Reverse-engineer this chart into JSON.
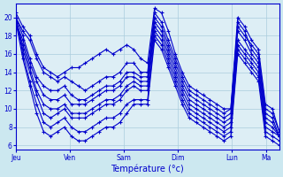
{
  "background_color": "#cce8f0",
  "plot_bg_color": "#ddeef5",
  "line_color": "#0000cc",
  "marker": "+",
  "markersize": 3,
  "linewidth": 0.8,
  "title": "Température (°c)",
  "ylabel_ticks": [
    6,
    8,
    10,
    12,
    14,
    16,
    18,
    20
  ],
  "ylim": [
    5.5,
    21.5
  ],
  "day_labels": [
    "Jeu",
    "Ven",
    "Sam",
    "Dim",
    "Lun",
    "Ma"
  ],
  "day_positions": [
    0,
    8,
    16,
    24,
    32,
    37
  ],
  "xlim": [
    0,
    39
  ],
  "grid_color": "#aaccdd",
  "series": [
    [
      20.5,
      19.0,
      18.0,
      16.0,
      14.5,
      14.0,
      13.5,
      14.0,
      14.5,
      14.5,
      15.0,
      15.5,
      16.0,
      16.5,
      16.0,
      16.5,
      17.0,
      16.5,
      15.5,
      15.0,
      21.0,
      20.5,
      18.5,
      16.0,
      14.0,
      12.5,
      12.0,
      11.5,
      11.0,
      10.5,
      10.0,
      10.0,
      20.0,
      19.0,
      17.5,
      16.5,
      10.5,
      10.0,
      7.5
    ],
    [
      20.0,
      18.5,
      17.5,
      15.5,
      14.0,
      13.5,
      13.0,
      13.5,
      13.0,
      12.5,
      12.0,
      12.5,
      13.0,
      13.5,
      13.5,
      14.0,
      15.0,
      15.0,
      14.0,
      14.0,
      20.5,
      19.5,
      17.5,
      15.5,
      13.5,
      12.0,
      11.5,
      11.0,
      10.5,
      10.0,
      9.5,
      10.0,
      19.0,
      18.0,
      17.0,
      16.0,
      10.0,
      9.5,
      7.5
    ],
    [
      20.0,
      18.0,
      15.5,
      13.5,
      12.5,
      12.0,
      12.0,
      12.5,
      11.5,
      11.0,
      11.0,
      11.5,
      12.0,
      12.5,
      12.5,
      13.0,
      14.0,
      14.0,
      13.5,
      13.5,
      20.0,
      19.0,
      17.0,
      15.0,
      13.0,
      11.5,
      11.0,
      10.5,
      10.0,
      9.5,
      9.0,
      9.5,
      19.5,
      18.5,
      16.5,
      15.5,
      9.5,
      9.0,
      7.0
    ],
    [
      19.5,
      17.5,
      15.0,
      13.0,
      11.5,
      11.0,
      11.0,
      11.5,
      10.5,
      10.5,
      10.5,
      11.0,
      11.5,
      12.0,
      12.0,
      12.5,
      13.5,
      13.5,
      13.0,
      13.0,
      19.5,
      18.5,
      16.5,
      14.5,
      12.5,
      11.0,
      10.5,
      10.0,
      9.5,
      9.0,
      8.5,
      9.0,
      18.5,
      17.5,
      16.0,
      15.0,
      9.0,
      8.5,
      7.0
    ],
    [
      19.5,
      17.0,
      14.5,
      12.0,
      10.5,
      10.0,
      10.0,
      10.5,
      9.5,
      9.5,
      9.5,
      10.0,
      10.5,
      11.0,
      11.0,
      11.5,
      12.5,
      13.0,
      12.5,
      12.5,
      19.0,
      18.0,
      16.0,
      14.0,
      12.0,
      10.5,
      10.0,
      9.5,
      9.0,
      8.5,
      8.0,
      8.5,
      17.5,
      16.5,
      15.5,
      14.5,
      8.5,
      8.0,
      7.0
    ],
    [
      20.0,
      16.5,
      14.0,
      11.5,
      9.5,
      9.0,
      9.5,
      10.0,
      9.0,
      9.0,
      9.0,
      9.5,
      10.0,
      10.5,
      10.5,
      11.0,
      12.0,
      12.5,
      12.0,
      12.0,
      18.5,
      17.5,
      15.5,
      13.5,
      11.5,
      10.0,
      9.5,
      9.0,
      8.5,
      8.0,
      7.5,
      8.0,
      17.0,
      16.0,
      15.0,
      14.0,
      8.0,
      7.5,
      7.0
    ],
    [
      20.0,
      16.0,
      13.0,
      10.5,
      8.5,
      8.0,
      8.5,
      9.0,
      8.0,
      7.5,
      7.5,
      8.0,
      8.5,
      9.0,
      9.0,
      9.5,
      10.5,
      11.0,
      11.0,
      11.0,
      18.0,
      17.0,
      15.0,
      13.0,
      11.0,
      9.5,
      9.0,
      8.5,
      8.0,
      7.5,
      7.0,
      7.5,
      16.5,
      15.5,
      14.5,
      13.5,
      7.5,
      7.0,
      6.5
    ],
    [
      19.5,
      15.5,
      12.5,
      9.5,
      7.5,
      7.0,
      7.5,
      8.0,
      7.0,
      6.5,
      6.5,
      7.0,
      7.5,
      8.0,
      8.0,
      8.5,
      9.5,
      10.5,
      10.5,
      10.5,
      17.5,
      16.5,
      14.5,
      12.5,
      10.5,
      9.0,
      8.5,
      8.0,
      7.5,
      7.0,
      6.5,
      7.0,
      16.0,
      15.0,
      14.0,
      13.0,
      7.0,
      6.5,
      6.0
    ]
  ]
}
